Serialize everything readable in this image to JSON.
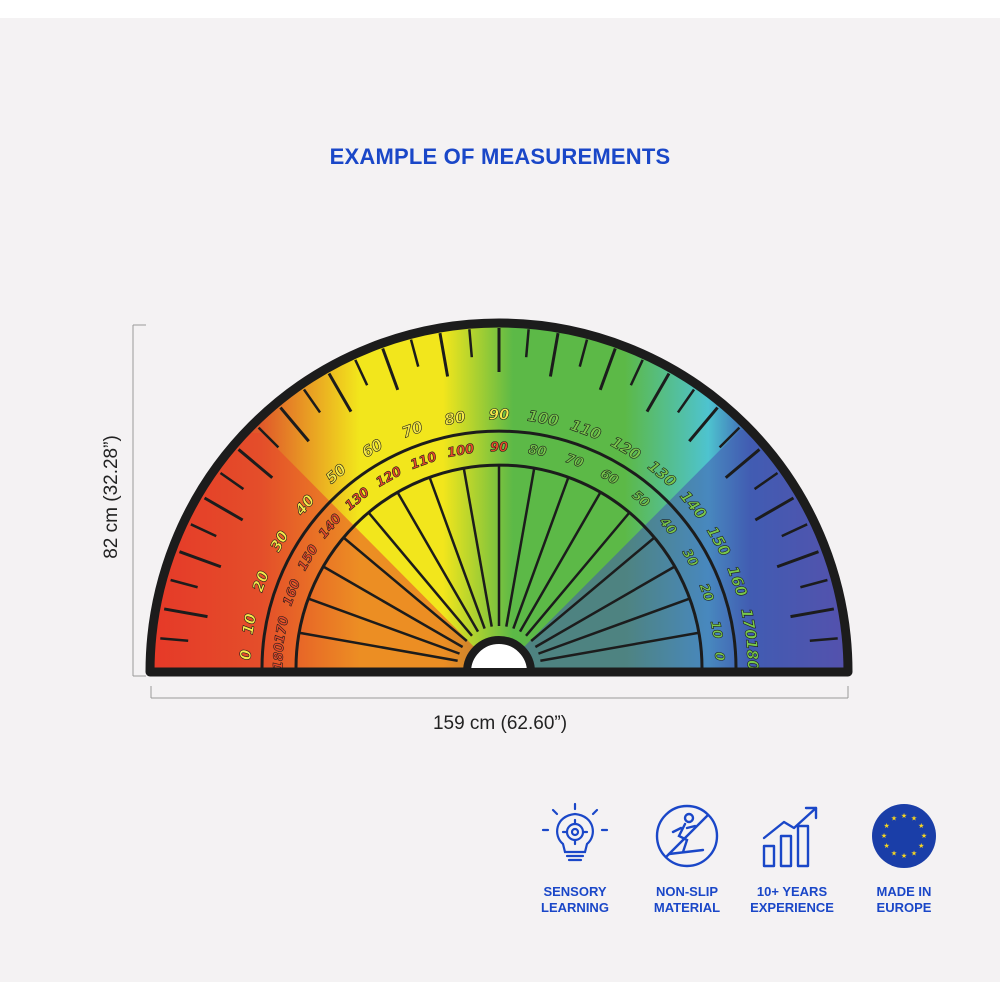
{
  "title": "EXAMPLE OF MEASUREMENTS",
  "width_label": "159 cm (62.60”)",
  "height_label": "82 cm (32.28”)",
  "protractor": {
    "outer_labels_left": [
      "0",
      "10",
      "20",
      "30",
      "40",
      "50",
      "60",
      "70",
      "80",
      "90",
      "100",
      "110",
      "120",
      "130",
      "140",
      "150",
      "160",
      "170",
      "180"
    ],
    "inner_labels_left": [
      "180",
      "170",
      "160",
      "150",
      "140",
      "130",
      "120",
      "110",
      "100",
      "90",
      "80",
      "70",
      "60",
      "50",
      "40",
      "30",
      "20",
      "10",
      "0"
    ],
    "colors": {
      "red": "#e42a27",
      "orange": "#e05a2a",
      "yellow": "#f2e61c",
      "green": "#5cb947",
      "teal": "#4ec3cf",
      "blue": "#3f62b4",
      "purple": "#6a4aa8",
      "outline": "#1c1c1c",
      "label_outer_left": "#f7e94a",
      "label_inner_left": "#e84a2a",
      "label_green": "#79c84b"
    }
  },
  "features": [
    {
      "icon": "sensory-learning-icon",
      "label": "SENSORY\nLEARNING"
    },
    {
      "icon": "non-slip-icon",
      "label": "NON-SLIP\nMATERIAL"
    },
    {
      "icon": "growth-chart-icon",
      "label": "10+ YEARS\nEXPERIENCE"
    },
    {
      "icon": "eu-flag-icon",
      "label": "MADE IN\nEUROPE"
    }
  ],
  "accent_color": "#1a47c8"
}
